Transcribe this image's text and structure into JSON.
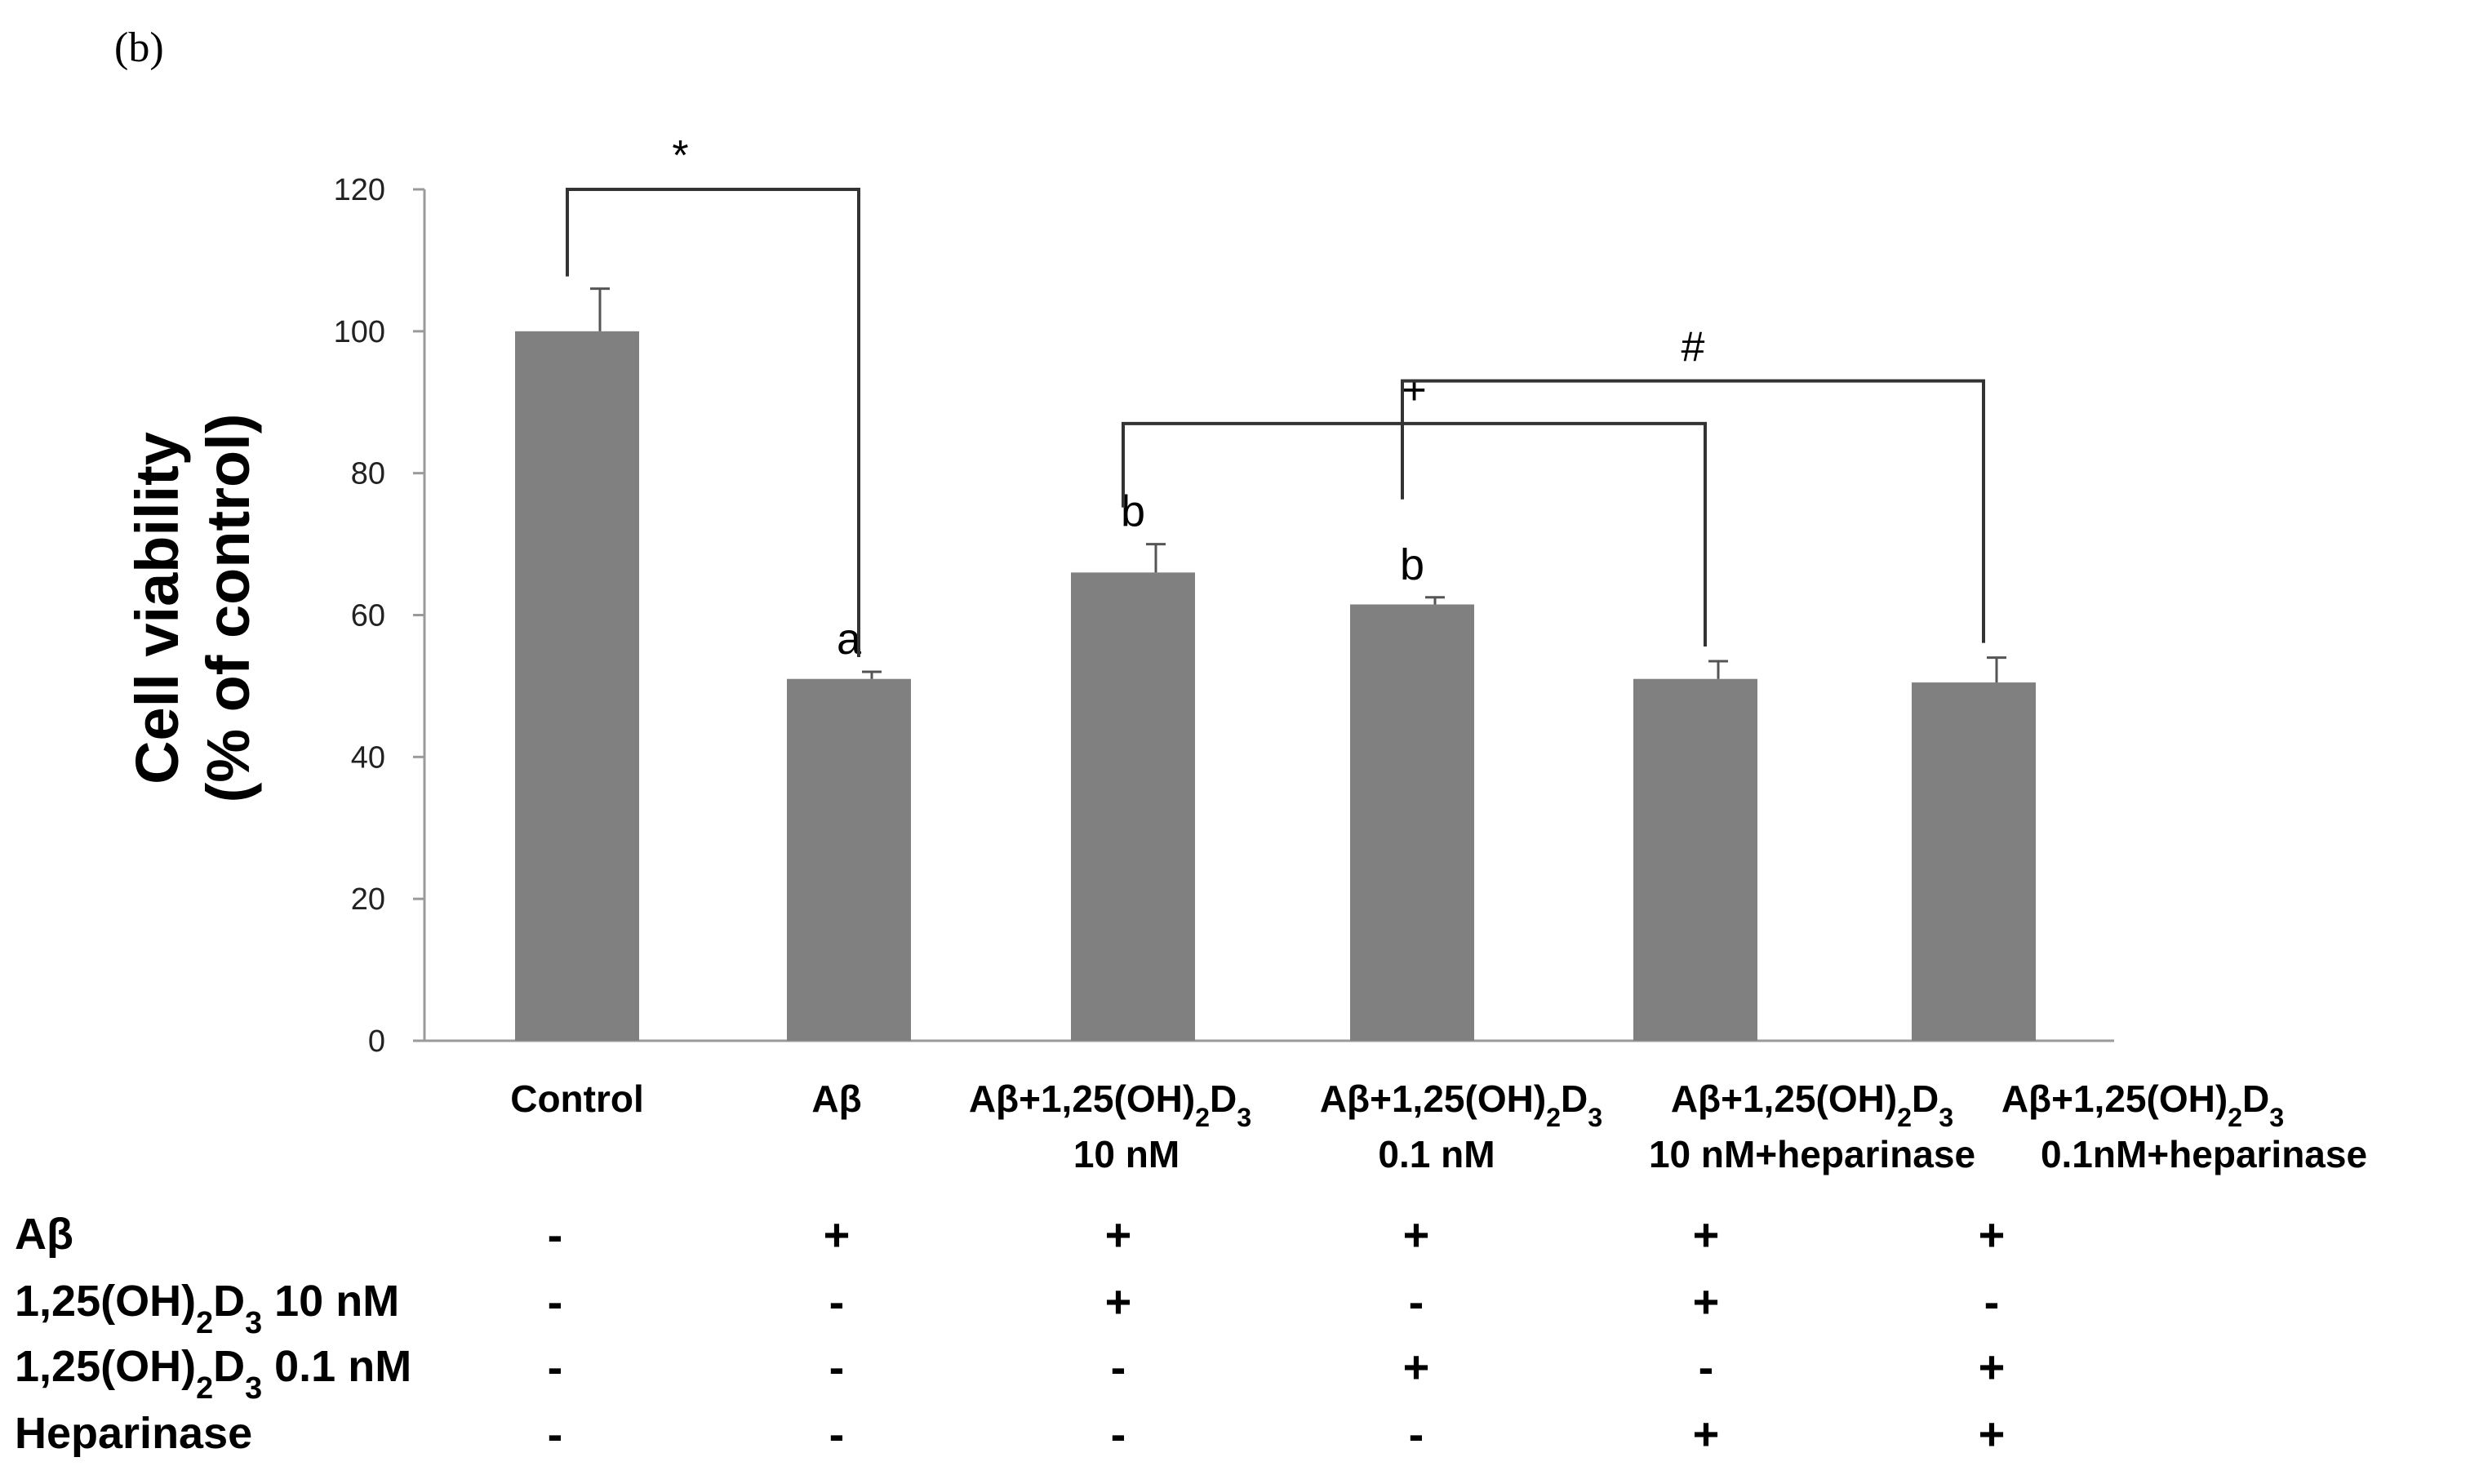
{
  "panel_label": "(b)",
  "chart_data": {
    "type": "bar",
    "ylabel_line1": "Cell viability",
    "ylabel_line2": "(% of control)",
    "ylim": [
      0,
      120
    ],
    "yticks": [
      0,
      20,
      40,
      60,
      80,
      100,
      120
    ],
    "bar_color": "#808080",
    "categories": [
      {
        "name": "Control",
        "line1": "Control",
        "line2": ""
      },
      {
        "name": "Aβ",
        "line1": "Aβ",
        "line2": ""
      },
      {
        "name": "Aβ+1,25(OH)2D3 10 nM",
        "line1": "Aβ+1,25(OH)₂D₃",
        "line2": "10 nM"
      },
      {
        "name": "Aβ+1,25(OH)2D3 0.1 nM",
        "line1": "Aβ+1,25(OH)₂D₃",
        "line2": "0.1 nM"
      },
      {
        "name": "Aβ+1,25(OH)2D3 10 nM+heparinase",
        "line1": "Aβ+1,25(OH)₂D₃",
        "line2": "10 nM+heparinase"
      },
      {
        "name": "Aβ+1,25(OH)2D3 0.1nM+heparinase",
        "line1": "Aβ+1,25(OH)₂D₃",
        "line2": "0.1nM+heparinase"
      }
    ],
    "values": [
      100,
      51,
      66,
      61.5,
      51,
      50.5
    ],
    "errors": [
      6,
      1,
      4,
      1,
      2.5,
      3.5
    ],
    "letters": [
      "",
      "a",
      "b",
      "b",
      "",
      ""
    ],
    "significance": [
      {
        "symbol": "*",
        "from": 0,
        "to": 1,
        "level": 120
      },
      {
        "symbol": "+",
        "from": 2,
        "to": 4,
        "level": 87
      },
      {
        "symbol": "#",
        "from": 3,
        "to": 5,
        "level": 93
      }
    ]
  },
  "treatment_table": {
    "rows": [
      {
        "label": "Aβ",
        "values": [
          "-",
          "+",
          "+",
          "+",
          "+",
          "+"
        ]
      },
      {
        "label": "1,25(OH)₂D₃ 10 nM",
        "values": [
          "-",
          "-",
          "+",
          "-",
          "+",
          "-"
        ]
      },
      {
        "label": "1,25(OH)₂D₃ 0.1 nM",
        "values": [
          "-",
          "-",
          "-",
          "+",
          "-",
          "+"
        ]
      },
      {
        "label": "Heparinase",
        "values": [
          "-",
          "-",
          "-",
          "-",
          "+",
          "+"
        ]
      }
    ]
  }
}
